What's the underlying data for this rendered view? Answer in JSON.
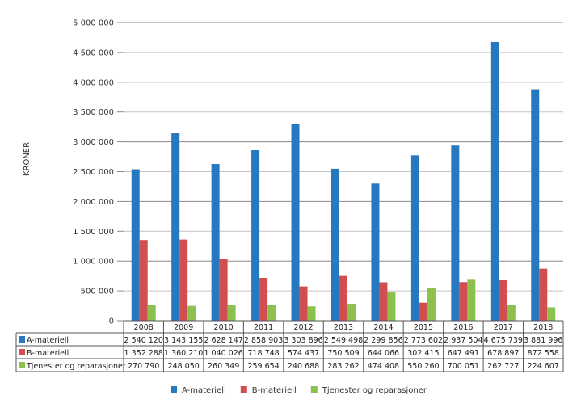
{
  "chart_data": {
    "type": "bar",
    "title": "",
    "xlabel": "",
    "ylabel": "KRONER",
    "ylim": [
      0,
      5000000
    ],
    "yticks": [
      0,
      500000,
      1000000,
      1500000,
      2000000,
      2500000,
      3000000,
      3500000,
      4000000,
      4500000,
      5000000
    ],
    "ytick_labels": [
      "0",
      "500 000",
      "1 000 000",
      "1 500 000",
      "2 000 000",
      "2 500 000",
      "3 000 000",
      "3 500 000",
      "4 000 000",
      "4 500 000",
      "5 000 000"
    ],
    "grid": true,
    "legend_position": "bottom",
    "categories": [
      "2008",
      "2009",
      "2010",
      "2011",
      "2012",
      "2013",
      "2014",
      "2015",
      "2016",
      "2017",
      "2018"
    ],
    "series": [
      {
        "name": "A-materiell",
        "color": "#2878c0",
        "values": [
          2540120,
          3143155,
          2628147,
          2858903,
          3303896,
          2549498,
          2299856,
          2773602,
          2937504,
          4675739,
          3881996
        ],
        "labels": [
          "2 540 120",
          "3 143 155",
          "2 628 147",
          "2 858 903",
          "3 303 896",
          "2 549 498",
          "2 299 856",
          "2 773 602",
          "2 937 504",
          "4 675 739",
          "3 881 996"
        ]
      },
      {
        "name": "B-materiell",
        "color": "#d24f4f",
        "values": [
          1352288,
          1360210,
          1040026,
          718748,
          574437,
          750509,
          644066,
          302415,
          647491,
          678897,
          872558
        ],
        "labels": [
          "1 352 288",
          "1 360 210",
          "1 040 026",
          "718 748",
          "574 437",
          "750 509",
          "644 066",
          "302 415",
          "647 491",
          "678 897",
          "872 558"
        ]
      },
      {
        "name": "Tjenester og reparasjoner",
        "color": "#8cc152",
        "values": [
          270790,
          248050,
          260349,
          259654,
          240688,
          283262,
          474408,
          550260,
          700051,
          262727,
          224607
        ],
        "labels": [
          "270 790",
          "248 050",
          "260 349",
          "259 654",
          "240 688",
          "283 262",
          "474 408",
          "550 260",
          "700 051",
          "262 727",
          "224 607"
        ]
      }
    ]
  }
}
